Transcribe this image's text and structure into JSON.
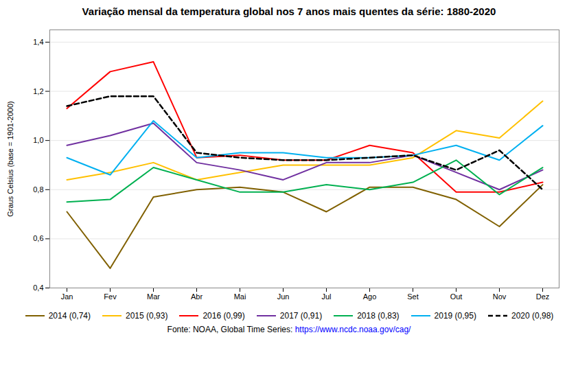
{
  "chart_data": {
    "type": "line",
    "title": "Variação mensal da temperatura global nos 7 anos mais quentes da série: 1880-2020",
    "ylabel": "Graus Celsius (base = 1901-2000)",
    "caption": "Fonte: NOAA, Global Time Series:",
    "caption_url": "https://www.ncdc.noaa.gov/cag/",
    "categories": [
      "Jan",
      "Fev",
      "Mar",
      "Abr",
      "Mai",
      "Jun",
      "Jul",
      "Ago",
      "Set",
      "Out",
      "Nov",
      "Dez"
    ],
    "series": [
      {
        "name": "2014 (0,74)",
        "color": "#806000",
        "line_style": "solid",
        "values": [
          0.71,
          0.48,
          0.77,
          0.8,
          0.81,
          0.79,
          0.71,
          0.81,
          0.81,
          0.76,
          0.65,
          0.82
        ]
      },
      {
        "name": "2015 (0,93)",
        "color": "#FFC000",
        "line_style": "solid",
        "values": [
          0.84,
          0.87,
          0.91,
          0.84,
          0.87,
          0.9,
          0.9,
          0.9,
          0.93,
          1.04,
          1.01,
          1.16
        ]
      },
      {
        "name": "2016 (0,99)",
        "color": "#FF0000",
        "line_style": "solid",
        "values": [
          1.13,
          1.28,
          1.32,
          0.93,
          0.94,
          0.92,
          0.92,
          0.98,
          0.95,
          0.79,
          0.79,
          0.83
        ]
      },
      {
        "name": "2017 (0,91)",
        "color": "#7030A0",
        "line_style": "solid",
        "values": [
          0.98,
          1.02,
          1.07,
          0.91,
          0.88,
          0.84,
          0.91,
          0.91,
          0.94,
          0.87,
          0.8,
          0.88
        ]
      },
      {
        "name": "2018 (0,83)",
        "color": "#00B050",
        "line_style": "solid",
        "values": [
          0.75,
          0.76,
          0.89,
          0.84,
          0.79,
          0.79,
          0.82,
          0.8,
          0.83,
          0.92,
          0.78,
          0.89
        ]
      },
      {
        "name": "2019 (0,95)",
        "color": "#00B0F0",
        "line_style": "solid",
        "values": [
          0.93,
          0.86,
          1.08,
          0.93,
          0.95,
          0.95,
          0.93,
          0.93,
          0.94,
          0.98,
          0.92,
          1.06
        ]
      },
      {
        "name": "2020 (0,98)",
        "color": "#000000",
        "line_style": "dashed",
        "values": [
          1.14,
          1.18,
          1.18,
          0.95,
          0.93,
          0.92,
          0.92,
          0.93,
          0.94,
          0.88,
          0.96,
          0.8
        ]
      }
    ],
    "ylim": [
      0.4,
      1.45
    ],
    "yticks": [
      {
        "value": 0.4,
        "label": "0,4"
      },
      {
        "value": 0.6,
        "label": "0,6"
      },
      {
        "value": 0.8,
        "label": "0,8"
      },
      {
        "value": 1.0,
        "label": "1,0"
      },
      {
        "value": 1.2,
        "label": "1,2"
      },
      {
        "value": 1.4,
        "label": "1,4"
      }
    ],
    "grid": true,
    "legend": "bottom"
  }
}
